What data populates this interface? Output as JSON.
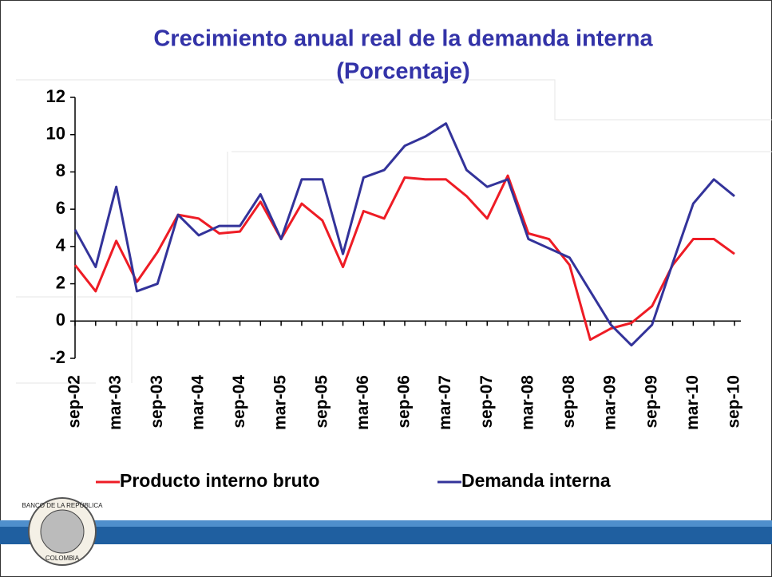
{
  "chart_data": {
    "type": "line",
    "title": "Crecimiento anual real de la demanda interna",
    "subtitle": "(Porcentaje)",
    "categories": [
      "sep-02",
      null,
      "mar-03",
      null,
      "sep-03",
      null,
      "mar-04",
      null,
      "sep-04",
      null,
      "mar-05",
      null,
      "sep-05",
      null,
      "mar-06",
      null,
      "sep-06",
      null,
      "mar-07",
      null,
      "sep-07",
      null,
      "mar-08",
      null,
      "sep-08",
      null,
      "mar-09",
      null,
      "sep-09",
      null,
      "mar-10",
      null,
      "sep-10"
    ],
    "series": [
      {
        "name": "Producto interno bruto",
        "color": "#ee1c25",
        "values": [
          3.0,
          1.6,
          4.3,
          2.1,
          3.7,
          5.7,
          5.5,
          4.7,
          4.8,
          6.4,
          4.4,
          6.3,
          5.4,
          2.9,
          5.9,
          5.5,
          7.7,
          7.6,
          7.6,
          6.7,
          5.5,
          7.8,
          4.7,
          4.4,
          3.0,
          -1.0,
          -0.4,
          -0.1,
          0.8,
          3.0,
          4.4,
          4.4,
          3.6
        ]
      },
      {
        "name": "Demanda interna",
        "color": "#33339a",
        "values": [
          4.9,
          2.9,
          7.2,
          1.6,
          2.0,
          5.7,
          4.6,
          5.1,
          5.1,
          6.8,
          4.4,
          7.6,
          7.6,
          3.6,
          7.7,
          8.1,
          9.4,
          9.9,
          10.6,
          8.1,
          7.2,
          7.6,
          4.4,
          3.9,
          3.4,
          1.6,
          -0.2,
          -1.3,
          -0.2,
          3.1,
          6.3,
          7.6,
          6.7
        ]
      }
    ],
    "ylim": [
      -2,
      12
    ],
    "yticks": [
      -2,
      0,
      2,
      4,
      6,
      8,
      10,
      12
    ],
    "legend": "bottom"
  },
  "logo": {
    "top": "BANCO DE LA REPÚBLICA",
    "bottom": "COLOMBIA"
  }
}
